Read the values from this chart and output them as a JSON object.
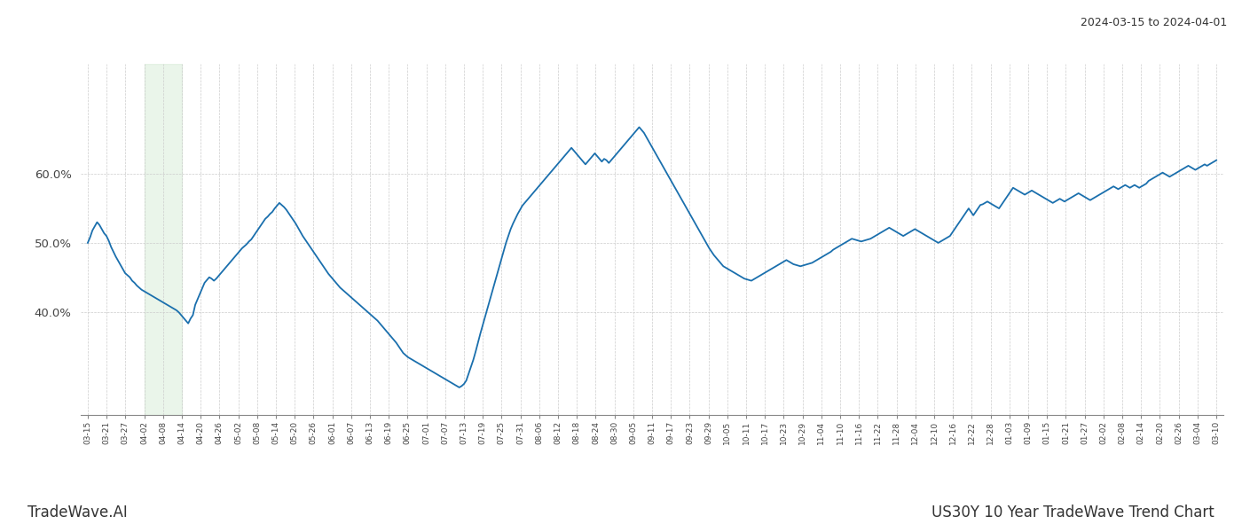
{
  "title_top_right": "2024-03-15 to 2024-04-01",
  "title_bottom_right": "US30Y 10 Year TradeWave Trend Chart",
  "title_bottom_left": "TradeWave.AI",
  "line_color": "#1a6fad",
  "line_width": 1.3,
  "background_color": "#ffffff",
  "grid_color": "#cccccc",
  "highlight_color": "#d6ecd6",
  "highlight_alpha": 0.5,
  "ylim": [
    0.25,
    0.76
  ],
  "yticks": [
    0.4,
    0.5,
    0.6
  ],
  "ytick_labels": [
    "40.0%",
    "50.0%",
    "60.0%"
  ],
  "xtick_labels": [
    "03-15",
    "03-21",
    "03-27",
    "04-02",
    "04-08",
    "04-14",
    "04-20",
    "04-26",
    "05-02",
    "05-08",
    "05-14",
    "05-20",
    "05-26",
    "06-01",
    "06-07",
    "06-13",
    "06-19",
    "06-25",
    "07-01",
    "07-07",
    "07-13",
    "07-19",
    "07-25",
    "07-31",
    "08-06",
    "08-12",
    "08-18",
    "08-24",
    "08-30",
    "09-05",
    "09-11",
    "09-17",
    "09-23",
    "09-29",
    "10-05",
    "10-11",
    "10-17",
    "10-23",
    "10-29",
    "11-04",
    "11-10",
    "11-16",
    "11-22",
    "11-28",
    "12-04",
    "12-10",
    "12-16",
    "12-22",
    "12-28",
    "01-03",
    "01-09",
    "01-15",
    "01-21",
    "01-27",
    "02-02",
    "02-08",
    "02-14",
    "02-20",
    "02-26",
    "03-04",
    "03-10"
  ],
  "num_ticks": 61,
  "highlight_xstart": 0.108,
  "highlight_xend": 0.148,
  "values": [
    0.5,
    0.508,
    0.518,
    0.524,
    0.53,
    0.526,
    0.52,
    0.514,
    0.51,
    0.503,
    0.494,
    0.487,
    0.48,
    0.474,
    0.468,
    0.462,
    0.456,
    0.453,
    0.45,
    0.445,
    0.442,
    0.438,
    0.435,
    0.432,
    0.43,
    0.428,
    0.426,
    0.424,
    0.422,
    0.42,
    0.418,
    0.416,
    0.414,
    0.412,
    0.41,
    0.408,
    0.406,
    0.404,
    0.402,
    0.399,
    0.395,
    0.391,
    0.387,
    0.383,
    0.39,
    0.395,
    0.41,
    0.418,
    0.426,
    0.434,
    0.442,
    0.446,
    0.45,
    0.448,
    0.445,
    0.448,
    0.452,
    0.456,
    0.46,
    0.464,
    0.468,
    0.472,
    0.476,
    0.48,
    0.484,
    0.488,
    0.492,
    0.495,
    0.498,
    0.502,
    0.505,
    0.51,
    0.515,
    0.52,
    0.525,
    0.53,
    0.535,
    0.538,
    0.542,
    0.545,
    0.55,
    0.554,
    0.558,
    0.555,
    0.552,
    0.548,
    0.543,
    0.538,
    0.533,
    0.528,
    0.522,
    0.516,
    0.51,
    0.505,
    0.5,
    0.495,
    0.49,
    0.485,
    0.48,
    0.475,
    0.47,
    0.465,
    0.46,
    0.455,
    0.451,
    0.447,
    0.443,
    0.439,
    0.435,
    0.432,
    0.429,
    0.426,
    0.423,
    0.42,
    0.417,
    0.414,
    0.411,
    0.408,
    0.405,
    0.402,
    0.399,
    0.396,
    0.393,
    0.39,
    0.387,
    0.383,
    0.379,
    0.375,
    0.371,
    0.367,
    0.363,
    0.359,
    0.355,
    0.35,
    0.345,
    0.34,
    0.337,
    0.334,
    0.332,
    0.33,
    0.328,
    0.326,
    0.324,
    0.322,
    0.32,
    0.318,
    0.316,
    0.314,
    0.312,
    0.31,
    0.308,
    0.306,
    0.304,
    0.302,
    0.3,
    0.298,
    0.296,
    0.294,
    0.292,
    0.29,
    0.292,
    0.295,
    0.3,
    0.31,
    0.32,
    0.33,
    0.342,
    0.355,
    0.368,
    0.38,
    0.392,
    0.404,
    0.416,
    0.428,
    0.44,
    0.452,
    0.464,
    0.476,
    0.488,
    0.5,
    0.51,
    0.52,
    0.528,
    0.535,
    0.542,
    0.548,
    0.554,
    0.558,
    0.562,
    0.566,
    0.57,
    0.574,
    0.578,
    0.582,
    0.586,
    0.59,
    0.594,
    0.598,
    0.602,
    0.606,
    0.61,
    0.614,
    0.618,
    0.622,
    0.626,
    0.63,
    0.634,
    0.638,
    0.634,
    0.63,
    0.626,
    0.622,
    0.618,
    0.614,
    0.618,
    0.622,
    0.626,
    0.63,
    0.626,
    0.622,
    0.618,
    0.622,
    0.62,
    0.616,
    0.62,
    0.624,
    0.628,
    0.632,
    0.636,
    0.64,
    0.644,
    0.648,
    0.652,
    0.656,
    0.66,
    0.664,
    0.668,
    0.664,
    0.66,
    0.654,
    0.648,
    0.642,
    0.636,
    0.63,
    0.624,
    0.618,
    0.612,
    0.606,
    0.6,
    0.594,
    0.588,
    0.582,
    0.576,
    0.57,
    0.564,
    0.558,
    0.552,
    0.546,
    0.54,
    0.534,
    0.528,
    0.522,
    0.516,
    0.51,
    0.504,
    0.498,
    0.492,
    0.487,
    0.482,
    0.478,
    0.474,
    0.47,
    0.466,
    0.464,
    0.462,
    0.46,
    0.458,
    0.456,
    0.454,
    0.452,
    0.45,
    0.448,
    0.447,
    0.446,
    0.445,
    0.447,
    0.449,
    0.451,
    0.453,
    0.455,
    0.457,
    0.459,
    0.461,
    0.463,
    0.465,
    0.467,
    0.469,
    0.471,
    0.473,
    0.475,
    0.473,
    0.471,
    0.469,
    0.468,
    0.467,
    0.466,
    0.467,
    0.468,
    0.469,
    0.47,
    0.471,
    0.473,
    0.475,
    0.477,
    0.479,
    0.481,
    0.483,
    0.485,
    0.487,
    0.49,
    0.492,
    0.494,
    0.496,
    0.498,
    0.5,
    0.502,
    0.504,
    0.506,
    0.505,
    0.504,
    0.503,
    0.502,
    0.503,
    0.504,
    0.505,
    0.506,
    0.508,
    0.51,
    0.512,
    0.514,
    0.516,
    0.518,
    0.52,
    0.522,
    0.52,
    0.518,
    0.516,
    0.514,
    0.512,
    0.51,
    0.512,
    0.514,
    0.516,
    0.518,
    0.52,
    0.518,
    0.516,
    0.514,
    0.512,
    0.51,
    0.508,
    0.506,
    0.504,
    0.502,
    0.5,
    0.502,
    0.504,
    0.506,
    0.508,
    0.51,
    0.515,
    0.52,
    0.525,
    0.53,
    0.535,
    0.54,
    0.545,
    0.55,
    0.545,
    0.54,
    0.545,
    0.55,
    0.555,
    0.556,
    0.558,
    0.56,
    0.558,
    0.556,
    0.554,
    0.552,
    0.55,
    0.555,
    0.56,
    0.565,
    0.57,
    0.575,
    0.58,
    0.578,
    0.576,
    0.574,
    0.572,
    0.57,
    0.572,
    0.574,
    0.576,
    0.574,
    0.572,
    0.57,
    0.568,
    0.566,
    0.564,
    0.562,
    0.56,
    0.558,
    0.56,
    0.562,
    0.564,
    0.562,
    0.56,
    0.562,
    0.564,
    0.566,
    0.568,
    0.57,
    0.572,
    0.57,
    0.568,
    0.566,
    0.564,
    0.562,
    0.564,
    0.566,
    0.568,
    0.57,
    0.572,
    0.574,
    0.576,
    0.578,
    0.58,
    0.582,
    0.58,
    0.578,
    0.58,
    0.582,
    0.584,
    0.582,
    0.58,
    0.582,
    0.584,
    0.582,
    0.58,
    0.582,
    0.584,
    0.586,
    0.59,
    0.592,
    0.594,
    0.596,
    0.598,
    0.6,
    0.602,
    0.6,
    0.598,
    0.596,
    0.598,
    0.6,
    0.602,
    0.604,
    0.606,
    0.608,
    0.61,
    0.612,
    0.61,
    0.608,
    0.606,
    0.608,
    0.61,
    0.612,
    0.614,
    0.612,
    0.614,
    0.616,
    0.618,
    0.62
  ]
}
